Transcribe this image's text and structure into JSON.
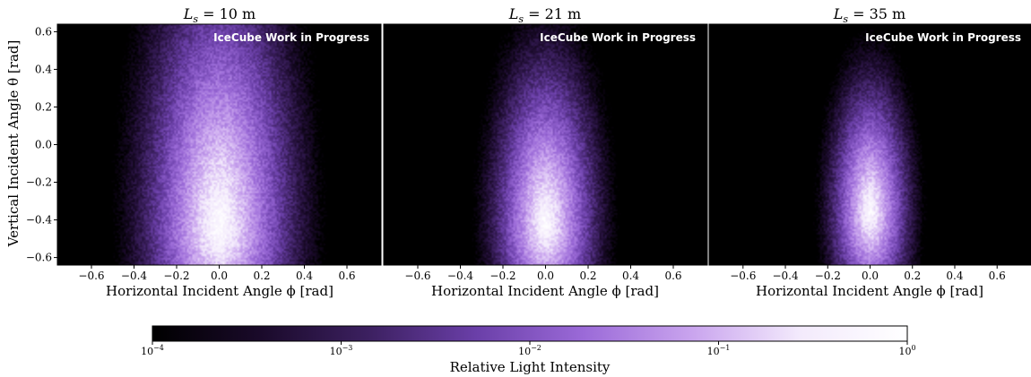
{
  "chart_data": [
    {
      "type": "heatmap",
      "title": "L_s = 10 m",
      "title_symbol": "L",
      "title_sub": "s",
      "title_rest": " = 10 m",
      "watermark": "IceCube Work in Progress",
      "xlabel": "Horizontal Incident Angle ϕ [rad]",
      "ylabel": "Vertical Incident Angle θ [rad]",
      "xlim": [
        -0.76,
        0.76
      ],
      "ylim": [
        -0.64,
        0.64
      ],
      "xticks": [
        "−0.6",
        "−0.4",
        "−0.2",
        "0.0",
        "0.2",
        "0.4",
        "0.6"
      ],
      "xtick_values": [
        -0.6,
        -0.4,
        -0.2,
        0.0,
        0.2,
        0.4,
        0.6
      ],
      "yticks": [
        "−0.6",
        "−0.4",
        "−0.2",
        "0.0",
        "0.2",
        "0.4",
        "0.6"
      ],
      "ytick_values": [
        -0.6,
        -0.4,
        -0.2,
        0.0,
        0.2,
        0.4,
        0.6
      ],
      "peak": {
        "phi": 0.0,
        "theta": -0.45
      },
      "spread": {
        "phi": 0.13,
        "theta_down": 0.25,
        "theta_up": 0.5
      },
      "peak_log_intensity": -0.05
    },
    {
      "type": "heatmap",
      "title": "L_s = 21 m",
      "title_symbol": "L",
      "title_sub": "s",
      "title_rest": " = 21 m",
      "watermark": "IceCube Work in Progress",
      "xlabel": "Horizontal Incident Angle ϕ [rad]",
      "xlim": [
        -0.76,
        0.76
      ],
      "ylim": [
        -0.64,
        0.64
      ],
      "xticks": [
        "−0.6",
        "−0.4",
        "−0.2",
        "0.0",
        "0.2",
        "0.4",
        "0.6"
      ],
      "xtick_values": [
        -0.6,
        -0.4,
        -0.2,
        0.0,
        0.2,
        0.4,
        0.6
      ],
      "peak": {
        "phi": 0.0,
        "theta": -0.42
      },
      "spread": {
        "phi": 0.09,
        "theta_down": 0.22,
        "theta_up": 0.32
      },
      "peak_log_intensity": -0.1
    },
    {
      "type": "heatmap",
      "title": "L_s = 35 m",
      "title_symbol": "L",
      "title_sub": "s",
      "title_rest": " = 35 m",
      "watermark": "IceCube Work in Progress",
      "xlabel": "Horizontal Incident Angle ϕ [rad]",
      "xlim": [
        -0.76,
        0.76
      ],
      "ylim": [
        -0.64,
        0.64
      ],
      "xticks": [
        "−0.6",
        "−0.4",
        "−0.2",
        "0.0",
        "0.2",
        "0.4",
        "0.6"
      ],
      "xtick_values": [
        -0.6,
        -0.4,
        -0.2,
        0.0,
        0.2,
        0.4,
        0.6
      ],
      "peak": {
        "phi": 0.0,
        "theta": -0.36
      },
      "spread": {
        "phi": 0.07,
        "theta_down": 0.2,
        "theta_up": 0.26
      },
      "peak_log_intensity": -0.15
    }
  ],
  "colorbar": {
    "label": "Relative Light Intensity",
    "scale": "log",
    "range": [
      0.0001,
      1
    ],
    "ticks": [
      {
        "base": "10",
        "exp": "−4",
        "value": 0.0001
      },
      {
        "base": "10",
        "exp": "−3",
        "value": 0.001
      },
      {
        "base": "10",
        "exp": "−2",
        "value": 0.01
      },
      {
        "base": "10",
        "exp": "−1",
        "value": 0.1
      },
      {
        "base": "10",
        "exp": "0",
        "value": 1
      }
    ],
    "colors": [
      "#000000",
      "#1a0a2a",
      "#3c2060",
      "#6a3fa8",
      "#9b6ad8",
      "#c9a4ee",
      "#f3eafc",
      "#ffffff"
    ]
  }
}
